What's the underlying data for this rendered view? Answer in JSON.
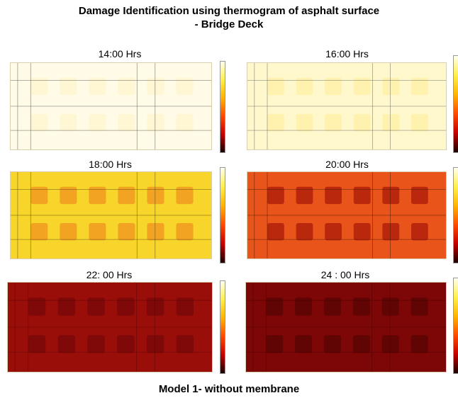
{
  "title_line1": "Damage Identification using thermogram of asphalt surface",
  "title_line2": "- Bridge Deck",
  "caption": "Model 1- without membrane",
  "panels": [
    {
      "label": "14:00 Hrs",
      "base": "#fffbe7",
      "patch": "#fff4cf",
      "grid": "#555555"
    },
    {
      "label": "16:00 Hrs",
      "base": "#fff8cc",
      "patch": "#fff0a8",
      "grid": "#666666"
    },
    {
      "label": "18:00 Hrs",
      "base": "#f7d52a",
      "patch": "#f09a20",
      "grid": "#5a4a10"
    },
    {
      "label": "20:00 Hrs",
      "base": "#e8541a",
      "patch": "#b0200c",
      "grid": "#4a1a0a"
    },
    {
      "label": "22: 00 Hrs",
      "base": "#9a0e0a",
      "patch": "#7a0808",
      "grid": "#5a0505"
    },
    {
      "label": "24 : 00 Hrs",
      "base": "#7d0707",
      "patch": "#5a0404",
      "grid": "#4a0303"
    }
  ]
}
